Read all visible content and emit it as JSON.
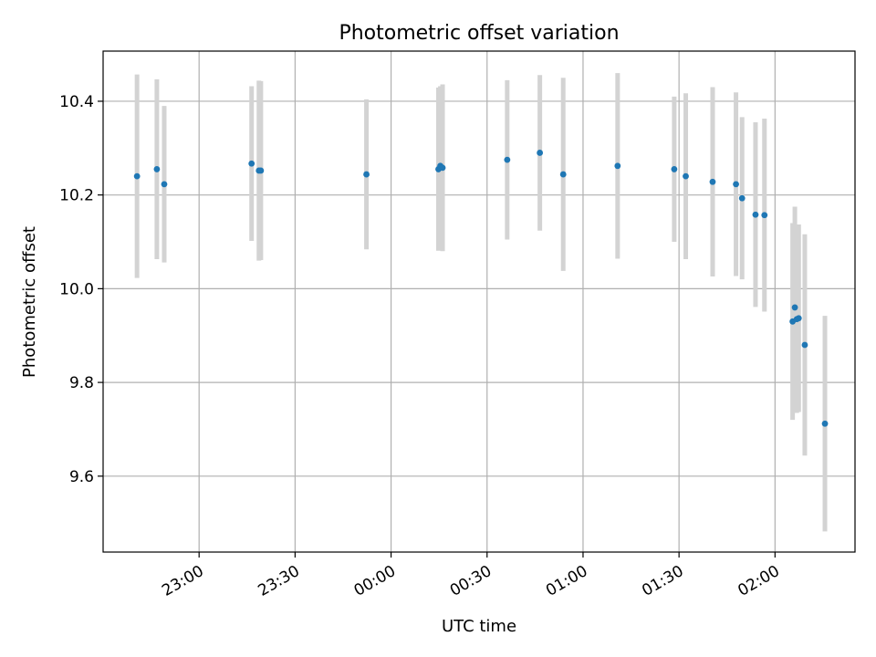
{
  "chart_data": {
    "type": "scatter",
    "title": "Photometric offset variation",
    "xlabel": "UTC time",
    "ylabel": "Photometric offset",
    "x_unit": "minutes after 22:30 UTC",
    "xlim": [
      0,
      235
    ],
    "ylim": [
      9.438,
      10.507
    ],
    "x_ticks": [
      {
        "value": 30,
        "label": "23:00"
      },
      {
        "value": 60,
        "label": "23:30"
      },
      {
        "value": 90,
        "label": "00:00"
      },
      {
        "value": 120,
        "label": "00:30"
      },
      {
        "value": 150,
        "label": "01:00"
      },
      {
        "value": 180,
        "label": "01:30"
      },
      {
        "value": 210,
        "label": "02:00"
      }
    ],
    "y_ticks": [
      {
        "value": 9.6,
        "label": "9.6"
      },
      {
        "value": 9.8,
        "label": "9.8"
      },
      {
        "value": 10.0,
        "label": "10.0"
      },
      {
        "value": 10.2,
        "label": "10.2"
      },
      {
        "value": 10.4,
        "label": "10.4"
      }
    ],
    "grid": true,
    "point_color": "#1f77b4",
    "errorbar_color": "#d3d3d3",
    "points": [
      {
        "x": 10.6,
        "y": 10.24,
        "err": 0.217
      },
      {
        "x": 16.8,
        "y": 10.255,
        "err": 0.192
      },
      {
        "x": 19.1,
        "y": 10.223,
        "err": 0.167
      },
      {
        "x": 46.4,
        "y": 10.267,
        "err": 0.165
      },
      {
        "x": 48.7,
        "y": 10.252,
        "err": 0.192
      },
      {
        "x": 49.3,
        "y": 10.252,
        "err": 0.191
      },
      {
        "x": 82.3,
        "y": 10.244,
        "err": 0.16
      },
      {
        "x": 104.8,
        "y": 10.255,
        "err": 0.174
      },
      {
        "x": 105.4,
        "y": 10.262,
        "err": 0.17
      },
      {
        "x": 106.1,
        "y": 10.258,
        "err": 0.178
      },
      {
        "x": 126.3,
        "y": 10.275,
        "err": 0.17
      },
      {
        "x": 136.5,
        "y": 10.29,
        "err": 0.166
      },
      {
        "x": 143.8,
        "y": 10.244,
        "err": 0.206
      },
      {
        "x": 160.8,
        "y": 10.262,
        "err": 0.198
      },
      {
        "x": 178.5,
        "y": 10.255,
        "err": 0.155
      },
      {
        "x": 182.1,
        "y": 10.24,
        "err": 0.177
      },
      {
        "x": 190.5,
        "y": 10.228,
        "err": 0.202
      },
      {
        "x": 197.8,
        "y": 10.223,
        "err": 0.196
      },
      {
        "x": 199.7,
        "y": 10.193,
        "err": 0.173
      },
      {
        "x": 203.9,
        "y": 10.158,
        "err": 0.197
      },
      {
        "x": 206.7,
        "y": 10.157,
        "err": 0.206
      },
      {
        "x": 215.5,
        "y": 9.93,
        "err": 0.21
      },
      {
        "x": 216.2,
        "y": 9.96,
        "err": 0.215
      },
      {
        "x": 216.8,
        "y": 9.935,
        "err": 0.2
      },
      {
        "x": 217.4,
        "y": 9.937,
        "err": 0.2
      },
      {
        "x": 219.3,
        "y": 9.88,
        "err": 0.236
      },
      {
        "x": 225.6,
        "y": 9.712,
        "err": 0.23
      }
    ]
  }
}
